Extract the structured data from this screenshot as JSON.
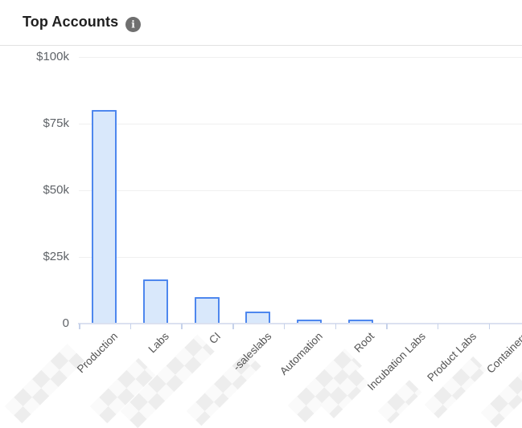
{
  "header": {
    "title": "Top Accounts",
    "info_glyph": "i"
  },
  "chart_data": {
    "type": "bar",
    "title": "Top Accounts",
    "categories": [
      "Production",
      "Labs",
      "CI",
      "-saleslabs",
      "Automation",
      "Root",
      "Incubation Labs",
      "Product Labs",
      "Containers"
    ],
    "values": [
      80000,
      16500,
      9800,
      4600,
      1400,
      1400,
      0,
      0,
      0
    ],
    "value_unit": "USD",
    "y_ticks": [
      {
        "label": "$100k",
        "value": 100000
      },
      {
        "label": "$75k",
        "value": 75000
      },
      {
        "label": "$50k",
        "value": 50000
      },
      {
        "label": "$25k",
        "value": 25000
      },
      {
        "label": "0",
        "value": 0
      }
    ],
    "ylim": [
      0,
      100000
    ],
    "xlabel": "",
    "ylabel": "",
    "grid": "horizontal",
    "legend": "none",
    "x_labels_rotation_deg": -45,
    "redaction_note": "account name prefixes are pixelated/redacted in the screenshot",
    "colors": {
      "bar_fill": "#d9e8fb",
      "bar_border": "#4e87ee",
      "axis": "#dbe1f0",
      "tick": "#c6d2ea",
      "gridline": "#f0f0f0",
      "y_label": "#5f6368",
      "x_label": "#545454",
      "title": "#202020",
      "divider": "#e2e2e2",
      "info_icon_bg": "#6f6f6f"
    }
  }
}
